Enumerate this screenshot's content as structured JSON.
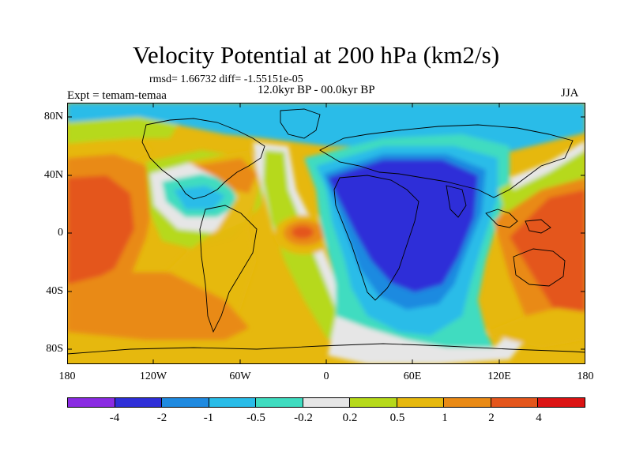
{
  "title": "Velocity Potential at 200 hPa (km2/s)",
  "stats": "rmsd= 1.66732 diff= -1.55151e-05",
  "period": "12.0kyr BP - 00.0kyr BP",
  "experiment": "Expt = temam-temaa",
  "season": "JJA",
  "lat_labels": [
    "80N",
    "40N",
    "0",
    "40S",
    "80S"
  ],
  "lon_labels": [
    "180",
    "120W",
    "60W",
    "0",
    "60E",
    "120E",
    "180"
  ],
  "legend": {
    "colors": [
      "#8a2be2",
      "#2f2fd8",
      "#1f8ae0",
      "#29bce8",
      "#3fdcc0",
      "#e6e6e6",
      "#b6d91a",
      "#e6b80e",
      "#e98a15",
      "#e4561c",
      "#dc1414"
    ],
    "labels": [
      "-4",
      "-2",
      "-1",
      "-0.5",
      "-0.2",
      "0.2",
      "0.5",
      "1",
      "2",
      "4"
    ]
  }
}
